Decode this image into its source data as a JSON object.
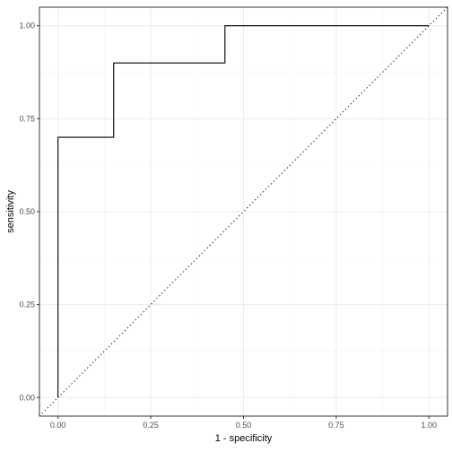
{
  "chart_data": {
    "type": "line",
    "title": "",
    "xlabel": "1 - specificity",
    "ylabel": "sensitivity",
    "xlim": [
      0,
      1
    ],
    "ylim": [
      0,
      1
    ],
    "grid": true,
    "x_ticks": [
      0,
      0.25,
      0.5,
      0.75,
      1
    ],
    "y_ticks": [
      0,
      0.25,
      0.5,
      0.75,
      1
    ],
    "x_tick_labels": [
      "0.00",
      "0.25",
      "0.50",
      "0.75",
      "1.00"
    ],
    "y_tick_labels": [
      "0.00",
      "0.25",
      "0.50",
      "0.75",
      "1.00"
    ],
    "series": [
      {
        "style": "step",
        "color": "#000000",
        "x": [
          0,
          0,
          0.15,
          0.15,
          0.45,
          0.45,
          1.0
        ],
        "y": [
          0,
          0.7,
          0.7,
          0.9,
          0.9,
          1.0,
          1.0
        ]
      },
      {
        "style": "dotted",
        "color": "#000000",
        "x": [
          -0.05,
          1.05
        ],
        "y": [
          -0.05,
          1.05
        ]
      }
    ]
  }
}
